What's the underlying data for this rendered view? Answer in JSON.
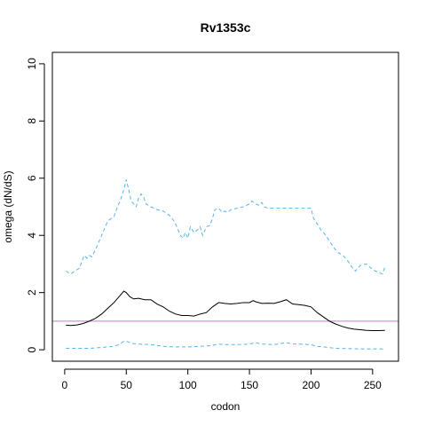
{
  "chart_data": {
    "type": "line",
    "title": "Rv1353c",
    "xlabel": "codon",
    "ylabel": "omega (dN/dS)",
    "xlim": [
      -10,
      271
    ],
    "ylim": [
      -0.4,
      10.4
    ],
    "x_ticks": [
      0,
      50,
      100,
      150,
      200,
      250
    ],
    "y_ticks": [
      0,
      2,
      4,
      6,
      8,
      10
    ],
    "reference_line": {
      "y": 1,
      "color": "#c77cc0"
    },
    "grid": false,
    "legend": "none",
    "series": [
      {
        "style": "solid",
        "color": "#000000",
        "points": [
          [
            1,
            0.86
          ],
          [
            5,
            0.85
          ],
          [
            10,
            0.87
          ],
          [
            15,
            0.92
          ],
          [
            20,
            1.0
          ],
          [
            25,
            1.1
          ],
          [
            30,
            1.25
          ],
          [
            35,
            1.45
          ],
          [
            40,
            1.65
          ],
          [
            45,
            1.9
          ],
          [
            48,
            2.05
          ],
          [
            50,
            2.0
          ],
          [
            53,
            1.85
          ],
          [
            56,
            1.78
          ],
          [
            60,
            1.8
          ],
          [
            65,
            1.75
          ],
          [
            70,
            1.75
          ],
          [
            75,
            1.6
          ],
          [
            80,
            1.5
          ],
          [
            85,
            1.35
          ],
          [
            90,
            1.25
          ],
          [
            95,
            1.2
          ],
          [
            100,
            1.2
          ],
          [
            105,
            1.18
          ],
          [
            110,
            1.25
          ],
          [
            115,
            1.3
          ],
          [
            120,
            1.5
          ],
          [
            125,
            1.65
          ],
          [
            130,
            1.62
          ],
          [
            135,
            1.6
          ],
          [
            140,
            1.62
          ],
          [
            145,
            1.65
          ],
          [
            150,
            1.65
          ],
          [
            153,
            1.72
          ],
          [
            155,
            1.68
          ],
          [
            160,
            1.62
          ],
          [
            165,
            1.63
          ],
          [
            170,
            1.62
          ],
          [
            175,
            1.68
          ],
          [
            180,
            1.75
          ],
          [
            185,
            1.6
          ],
          [
            190,
            1.58
          ],
          [
            195,
            1.55
          ],
          [
            200,
            1.5
          ],
          [
            205,
            1.3
          ],
          [
            210,
            1.15
          ],
          [
            215,
            1.0
          ],
          [
            220,
            0.9
          ],
          [
            225,
            0.82
          ],
          [
            230,
            0.76
          ],
          [
            235,
            0.72
          ],
          [
            240,
            0.7
          ],
          [
            245,
            0.68
          ],
          [
            250,
            0.67
          ],
          [
            255,
            0.67
          ],
          [
            260,
            0.68
          ]
        ]
      },
      {
        "style": "dashed",
        "color": "#56b4e9",
        "points": [
          [
            1,
            2.75
          ],
          [
            3,
            2.7
          ],
          [
            5,
            2.65
          ],
          [
            8,
            2.75
          ],
          [
            12,
            2.85
          ],
          [
            14,
            3.1
          ],
          [
            16,
            3.3
          ],
          [
            18,
            3.2
          ],
          [
            20,
            3.3
          ],
          [
            22,
            3.25
          ],
          [
            25,
            3.5
          ],
          [
            28,
            3.8
          ],
          [
            30,
            4.0
          ],
          [
            32,
            4.2
          ],
          [
            35,
            4.5
          ],
          [
            38,
            4.6
          ],
          [
            40,
            4.65
          ],
          [
            42,
            4.9
          ],
          [
            45,
            5.2
          ],
          [
            48,
            5.6
          ],
          [
            50,
            5.95
          ],
          [
            52,
            5.6
          ],
          [
            54,
            5.2
          ],
          [
            56,
            5.1
          ],
          [
            58,
            5.0
          ],
          [
            60,
            5.3
          ],
          [
            62,
            5.45
          ],
          [
            64,
            5.35
          ],
          [
            66,
            5.1
          ],
          [
            70,
            5.0
          ],
          [
            75,
            4.9
          ],
          [
            80,
            4.85
          ],
          [
            85,
            4.7
          ],
          [
            88,
            4.55
          ],
          [
            90,
            4.4
          ],
          [
            92,
            4.2
          ],
          [
            94,
            4.0
          ],
          [
            96,
            3.9
          ],
          [
            98,
            4.1
          ],
          [
            100,
            3.9
          ],
          [
            102,
            4.3
          ],
          [
            105,
            4.1
          ],
          [
            108,
            4.2
          ],
          [
            110,
            4.3
          ],
          [
            112,
            4.0
          ],
          [
            115,
            4.3
          ],
          [
            118,
            4.35
          ],
          [
            120,
            4.6
          ],
          [
            122,
            4.9
          ],
          [
            125,
            4.95
          ],
          [
            128,
            4.8
          ],
          [
            130,
            4.85
          ],
          [
            132,
            4.8
          ],
          [
            135,
            4.9
          ],
          [
            140,
            4.95
          ],
          [
            145,
            5.0
          ],
          [
            150,
            5.1
          ],
          [
            152,
            5.2
          ],
          [
            155,
            5.1
          ],
          [
            158,
            5.05
          ],
          [
            160,
            5.15
          ],
          [
            162,
            5.0
          ],
          [
            165,
            4.95
          ],
          [
            170,
            4.95
          ],
          [
            175,
            4.95
          ],
          [
            180,
            4.95
          ],
          [
            185,
            4.95
          ],
          [
            190,
            4.95
          ],
          [
            195,
            4.95
          ],
          [
            200,
            4.95
          ],
          [
            202,
            4.6
          ],
          [
            205,
            4.4
          ],
          [
            208,
            4.2
          ],
          [
            212,
            4.0
          ],
          [
            215,
            3.8
          ],
          [
            218,
            3.6
          ],
          [
            222,
            3.4
          ],
          [
            226,
            3.3
          ],
          [
            230,
            3.1
          ],
          [
            233,
            2.9
          ],
          [
            236,
            2.75
          ],
          [
            240,
            2.95
          ],
          [
            245,
            3.0
          ],
          [
            250,
            2.8
          ],
          [
            255,
            2.7
          ],
          [
            258,
            2.65
          ],
          [
            260,
            2.9
          ]
        ]
      },
      {
        "style": "dashed",
        "color": "#56b4e9",
        "points": [
          [
            1,
            0.05
          ],
          [
            10,
            0.05
          ],
          [
            20,
            0.05
          ],
          [
            30,
            0.08
          ],
          [
            40,
            0.12
          ],
          [
            45,
            0.2
          ],
          [
            48,
            0.3
          ],
          [
            50,
            0.3
          ],
          [
            55,
            0.22
          ],
          [
            60,
            0.2
          ],
          [
            70,
            0.18
          ],
          [
            80,
            0.12
          ],
          [
            90,
            0.1
          ],
          [
            100,
            0.1
          ],
          [
            110,
            0.12
          ],
          [
            120,
            0.15
          ],
          [
            125,
            0.2
          ],
          [
            130,
            0.18
          ],
          [
            140,
            0.18
          ],
          [
            150,
            0.2
          ],
          [
            155,
            0.25
          ],
          [
            160,
            0.2
          ],
          [
            170,
            0.18
          ],
          [
            180,
            0.25
          ],
          [
            185,
            0.2
          ],
          [
            190,
            0.2
          ],
          [
            200,
            0.18
          ],
          [
            205,
            0.12
          ],
          [
            210,
            0.1
          ],
          [
            220,
            0.05
          ],
          [
            230,
            0.04
          ],
          [
            240,
            0.03
          ],
          [
            250,
            0.03
          ],
          [
            260,
            0.03
          ]
        ]
      }
    ]
  }
}
